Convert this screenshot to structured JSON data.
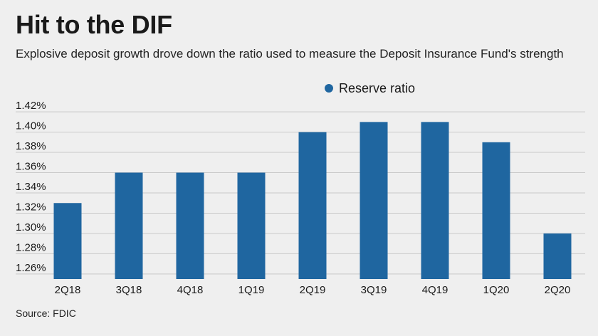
{
  "header": {
    "title": "Hit to the DIF",
    "subtitle": "Explosive deposit growth drove down the ratio used to measure the Deposit Insurance Fund's strength"
  },
  "footer": {
    "source": "Source: FDIC"
  },
  "chart_data": {
    "type": "bar",
    "categories": [
      "2Q18",
      "3Q18",
      "4Q18",
      "1Q19",
      "2Q19",
      "3Q19",
      "4Q19",
      "1Q20",
      "2Q20"
    ],
    "series": [
      {
        "name": "Reserve ratio",
        "values": [
          1.33,
          1.36,
          1.36,
          1.36,
          1.4,
          1.41,
          1.41,
          1.39,
          1.3
        ]
      }
    ],
    "y_ticks": [
      "1.26%",
      "1.28%",
      "1.30%",
      "1.32%",
      "1.34%",
      "1.36%",
      "1.38%",
      "1.40%",
      "1.42%"
    ],
    "ylim": [
      1.255,
      1.425
    ],
    "grid": true,
    "legend": "top-center",
    "colors": {
      "bar": "#1f66a0",
      "grid": "#c9c9c9",
      "background": "#efefef"
    }
  }
}
